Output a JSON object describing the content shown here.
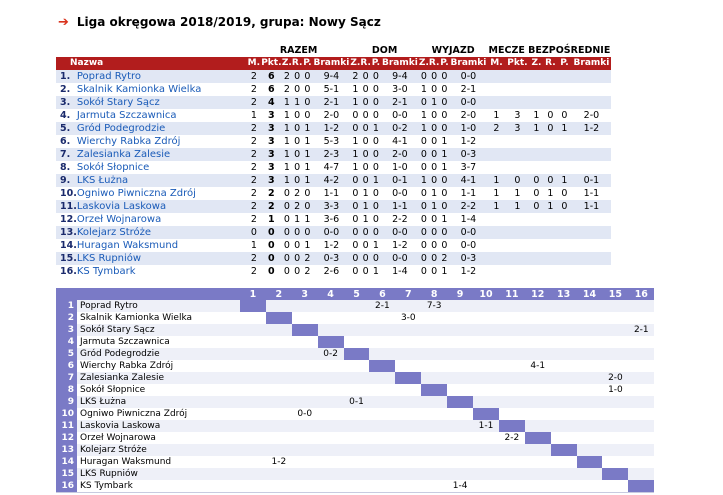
{
  "title": "Liga okręgowa 2018/2019, grupa: Nowy Sącz",
  "groups": {
    "razem": "RAZEM",
    "dom": "DOM",
    "wyjazd": "WYJAZD",
    "mecze": "MECZE BEZPOŚREDNIE"
  },
  "columns": {
    "nazwa": "Nazwa",
    "m": "M.",
    "pkt": "Pkt.",
    "z": "Z.",
    "r": "R.",
    "p": "P.",
    "bramki": "Bramki"
  },
  "standings": [
    {
      "pos": "1.",
      "team": "Poprad Rytro",
      "m": "2",
      "pkt": "6",
      "z": "2",
      "r": "0",
      "p": "0",
      "g": "9-4",
      "dz": "2",
      "dr": "0",
      "dp": "0",
      "dg": "9-4",
      "wz": "0",
      "wr": "0",
      "wp": "0",
      "wg": "0-0",
      "bm": "",
      "bpkt": "",
      "bz": "",
      "br": "",
      "bp": "",
      "bg": ""
    },
    {
      "pos": "2.",
      "team": "Skalnik Kamionka Wielka",
      "m": "2",
      "pkt": "6",
      "z": "2",
      "r": "0",
      "p": "0",
      "g": "5-1",
      "dz": "1",
      "dr": "0",
      "dp": "0",
      "dg": "3-0",
      "wz": "1",
      "wr": "0",
      "wp": "0",
      "wg": "2-1",
      "bm": "",
      "bpkt": "",
      "bz": "",
      "br": "",
      "bp": "",
      "bg": ""
    },
    {
      "pos": "3.",
      "team": "Sokół Stary Sącz",
      "m": "2",
      "pkt": "4",
      "z": "1",
      "r": "1",
      "p": "0",
      "g": "2-1",
      "dz": "1",
      "dr": "0",
      "dp": "0",
      "dg": "2-1",
      "wz": "0",
      "wr": "1",
      "wp": "0",
      "wg": "0-0",
      "bm": "",
      "bpkt": "",
      "bz": "",
      "br": "",
      "bp": "",
      "bg": ""
    },
    {
      "pos": "4.",
      "team": "Jarmuta Szczawnica",
      "m": "1",
      "pkt": "3",
      "z": "1",
      "r": "0",
      "p": "0",
      "g": "2-0",
      "dz": "0",
      "dr": "0",
      "dp": "0",
      "dg": "0-0",
      "wz": "1",
      "wr": "0",
      "wp": "0",
      "wg": "2-0",
      "bm": "1",
      "bpkt": "3",
      "bz": "1",
      "br": "0",
      "bp": "0",
      "bg": "2-0"
    },
    {
      "pos": "5.",
      "team": "Gród Podegrodzie",
      "m": "2",
      "pkt": "3",
      "z": "1",
      "r": "0",
      "p": "1",
      "g": "1-2",
      "dz": "0",
      "dr": "0",
      "dp": "1",
      "dg": "0-2",
      "wz": "1",
      "wr": "0",
      "wp": "0",
      "wg": "1-0",
      "bm": "2",
      "bpkt": "3",
      "bz": "1",
      "br": "0",
      "bp": "1",
      "bg": "1-2"
    },
    {
      "pos": "6.",
      "team": "Wierchy Rabka Zdrój",
      "m": "2",
      "pkt": "3",
      "z": "1",
      "r": "0",
      "p": "1",
      "g": "5-3",
      "dz": "1",
      "dr": "0",
      "dp": "0",
      "dg": "4-1",
      "wz": "0",
      "wr": "0",
      "wp": "1",
      "wg": "1-2",
      "bm": "",
      "bpkt": "",
      "bz": "",
      "br": "",
      "bp": "",
      "bg": ""
    },
    {
      "pos": "7.",
      "team": "Zalesianka Zalesie",
      "m": "2",
      "pkt": "3",
      "z": "1",
      "r": "0",
      "p": "1",
      "g": "2-3",
      "dz": "1",
      "dr": "0",
      "dp": "0",
      "dg": "2-0",
      "wz": "0",
      "wr": "0",
      "wp": "1",
      "wg": "0-3",
      "bm": "",
      "bpkt": "",
      "bz": "",
      "br": "",
      "bp": "",
      "bg": ""
    },
    {
      "pos": "8.",
      "team": "Sokół Słopnice",
      "m": "2",
      "pkt": "3",
      "z": "1",
      "r": "0",
      "p": "1",
      "g": "4-7",
      "dz": "1",
      "dr": "0",
      "dp": "0",
      "dg": "1-0",
      "wz": "0",
      "wr": "0",
      "wp": "1",
      "wg": "3-7",
      "bm": "",
      "bpkt": "",
      "bz": "",
      "br": "",
      "bp": "",
      "bg": ""
    },
    {
      "pos": "9.",
      "team": "LKS Łużna",
      "m": "2",
      "pkt": "3",
      "z": "1",
      "r": "0",
      "p": "1",
      "g": "4-2",
      "dz": "0",
      "dr": "0",
      "dp": "1",
      "dg": "0-1",
      "wz": "1",
      "wr": "0",
      "wp": "0",
      "wg": "4-1",
      "bm": "1",
      "bpkt": "0",
      "bz": "0",
      "br": "0",
      "bp": "1",
      "bg": "0-1"
    },
    {
      "pos": "10.",
      "team": "Ogniwo Piwniczna Zdrój",
      "m": "2",
      "pkt": "2",
      "z": "0",
      "r": "2",
      "p": "0",
      "g": "1-1",
      "dz": "0",
      "dr": "1",
      "dp": "0",
      "dg": "0-0",
      "wz": "0",
      "wr": "1",
      "wp": "0",
      "wg": "1-1",
      "bm": "1",
      "bpkt": "1",
      "bz": "0",
      "br": "1",
      "bp": "0",
      "bg": "1-1"
    },
    {
      "pos": "11.",
      "team": "Laskovia Laskowa",
      "m": "2",
      "pkt": "2",
      "z": "0",
      "r": "2",
      "p": "0",
      "g": "3-3",
      "dz": "0",
      "dr": "1",
      "dp": "0",
      "dg": "1-1",
      "wz": "0",
      "wr": "1",
      "wp": "0",
      "wg": "2-2",
      "bm": "1",
      "bpkt": "1",
      "bz": "0",
      "br": "1",
      "bp": "0",
      "bg": "1-1"
    },
    {
      "pos": "12.",
      "team": "Orzeł Wojnarowa",
      "m": "2",
      "pkt": "1",
      "z": "0",
      "r": "1",
      "p": "1",
      "g": "3-6",
      "dz": "0",
      "dr": "1",
      "dp": "0",
      "dg": "2-2",
      "wz": "0",
      "wr": "0",
      "wp": "1",
      "wg": "1-4",
      "bm": "",
      "bpkt": "",
      "bz": "",
      "br": "",
      "bp": "",
      "bg": ""
    },
    {
      "pos": "13.",
      "team": "Kolejarz Stróże",
      "m": "0",
      "pkt": "0",
      "z": "0",
      "r": "0",
      "p": "0",
      "g": "0-0",
      "dz": "0",
      "dr": "0",
      "dp": "0",
      "dg": "0-0",
      "wz": "0",
      "wr": "0",
      "wp": "0",
      "wg": "0-0",
      "bm": "",
      "bpkt": "",
      "bz": "",
      "br": "",
      "bp": "",
      "bg": ""
    },
    {
      "pos": "14.",
      "team": "Huragan Waksmund",
      "m": "1",
      "pkt": "0",
      "z": "0",
      "r": "0",
      "p": "1",
      "g": "1-2",
      "dz": "0",
      "dr": "0",
      "dp": "1",
      "dg": "1-2",
      "wz": "0",
      "wr": "0",
      "wp": "0",
      "wg": "0-0",
      "bm": "",
      "bpkt": "",
      "bz": "",
      "br": "",
      "bp": "",
      "bg": ""
    },
    {
      "pos": "15.",
      "team": "LKS Rupniów",
      "m": "2",
      "pkt": "0",
      "z": "0",
      "r": "0",
      "p": "2",
      "g": "0-3",
      "dz": "0",
      "dr": "0",
      "dp": "0",
      "dg": "0-0",
      "wz": "0",
      "wr": "0",
      "wp": "2",
      "wg": "0-3",
      "bm": "",
      "bpkt": "",
      "bz": "",
      "br": "",
      "bp": "",
      "bg": ""
    },
    {
      "pos": "16.",
      "team": "KS Tymbark",
      "m": "2",
      "pkt": "0",
      "z": "0",
      "r": "0",
      "p": "2",
      "g": "2-6",
      "dz": "0",
      "dr": "0",
      "dp": "1",
      "dg": "1-4",
      "wz": "0",
      "wr": "0",
      "wp": "1",
      "wg": "1-2",
      "bm": "",
      "bpkt": "",
      "bz": "",
      "br": "",
      "bp": "",
      "bg": ""
    }
  ],
  "grid": {
    "column_numbers": [
      "1",
      "2",
      "3",
      "4",
      "5",
      "6",
      "7",
      "8",
      "9",
      "10",
      "11",
      "12",
      "13",
      "14",
      "15",
      "16"
    ],
    "rows": [
      {
        "n": "1",
        "team": "Poprad Rytro",
        "results": [
          "",
          "",
          "",
          "",
          "",
          "2-1",
          "",
          "7-3",
          "",
          "",
          "",
          "",
          "",
          "",
          "",
          ""
        ]
      },
      {
        "n": "2",
        "team": "Skalnik Kamionka Wielka",
        "results": [
          "",
          "",
          "",
          "",
          "",
          "",
          "3-0",
          "",
          "",
          "",
          "",
          "",
          "",
          "",
          "",
          ""
        ]
      },
      {
        "n": "3",
        "team": "Sokół Stary Sącz",
        "results": [
          "",
          "",
          "",
          "",
          "",
          "",
          "",
          "",
          "",
          "",
          "",
          "",
          "",
          "",
          "",
          "2-1"
        ]
      },
      {
        "n": "4",
        "team": "Jarmuta Szczawnica",
        "results": [
          "",
          "",
          "",
          "",
          "",
          "",
          "",
          "",
          "",
          "",
          "",
          "",
          "",
          "",
          "",
          ""
        ]
      },
      {
        "n": "5",
        "team": "Gród Podegrodzie",
        "results": [
          "",
          "",
          "",
          "0-2",
          "",
          "",
          "",
          "",
          "",
          "",
          "",
          "",
          "",
          "",
          "",
          ""
        ]
      },
      {
        "n": "6",
        "team": "Wierchy Rabka Zdrój",
        "results": [
          "",
          "",
          "",
          "",
          "",
          "",
          "",
          "",
          "",
          "",
          "",
          "4-1",
          "",
          "",
          "",
          ""
        ]
      },
      {
        "n": "7",
        "team": "Zalesianka Zalesie",
        "results": [
          "",
          "",
          "",
          "",
          "",
          "",
          "",
          "",
          "",
          "",
          "",
          "",
          "",
          "",
          "2-0",
          ""
        ]
      },
      {
        "n": "8",
        "team": "Sokół Słopnice",
        "results": [
          "",
          "",
          "",
          "",
          "",
          "",
          "",
          "",
          "",
          "",
          "",
          "",
          "",
          "",
          "1-0",
          ""
        ]
      },
      {
        "n": "9",
        "team": "LKS Łużna",
        "results": [
          "",
          "",
          "",
          "",
          "0-1",
          "",
          "",
          "",
          "",
          "",
          "",
          "",
          "",
          "",
          "",
          ""
        ]
      },
      {
        "n": "10",
        "team": "Ogniwo Piwniczna Zdrój",
        "results": [
          "",
          "",
          "0-0",
          "",
          "",
          "",
          "",
          "",
          "",
          "",
          "",
          "",
          "",
          "",
          "",
          ""
        ]
      },
      {
        "n": "11",
        "team": "Laskovia Laskowa",
        "results": [
          "",
          "",
          "",
          "",
          "",
          "",
          "",
          "",
          "",
          "1-1",
          "",
          "",
          "",
          "",
          "",
          ""
        ]
      },
      {
        "n": "12",
        "team": "Orzeł Wojnarowa",
        "results": [
          "",
          "",
          "",
          "",
          "",
          "",
          "",
          "",
          "",
          "",
          "2-2",
          "",
          "",
          "",
          "",
          ""
        ]
      },
      {
        "n": "13",
        "team": "Kolejarz Stróże",
        "results": [
          "",
          "",
          "",
          "",
          "",
          "",
          "",
          "",
          "",
          "",
          "",
          "",
          "",
          "",
          "",
          ""
        ]
      },
      {
        "n": "14",
        "team": "Huragan Waksmund",
        "results": [
          "",
          "1-2",
          "",
          "",
          "",
          "",
          "",
          "",
          "",
          "",
          "",
          "",
          "",
          "",
          "",
          ""
        ]
      },
      {
        "n": "15",
        "team": "LKS Rupniów",
        "results": [
          "",
          "",
          "",
          "",
          "",
          "",
          "",
          "",
          "",
          "",
          "",
          "",
          "",
          "",
          "",
          ""
        ]
      },
      {
        "n": "16",
        "team": "KS Tymbark",
        "results": [
          "",
          "",
          "",
          "",
          "",
          "",
          "",
          "",
          "1-4",
          "",
          "",
          "",
          "",
          "",
          "",
          ""
        ]
      }
    ]
  },
  "icons": {
    "title_arrow": "arrow-right-icon"
  },
  "colors": {
    "accent_red": "#b21d1d",
    "arrow_red": "#d9321c",
    "grid_header": "#7a7ac6",
    "link": "#1a5bb8",
    "stripe": "#e1e7f4"
  }
}
